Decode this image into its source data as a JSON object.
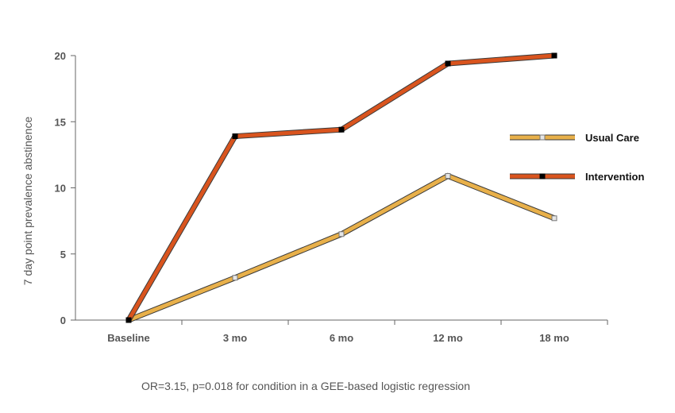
{
  "chart_data": {
    "type": "line",
    "categories": [
      "Baseline",
      "3 mo",
      "6 mo",
      "12 mo",
      "18 mo"
    ],
    "series": [
      {
        "name": "Usual Care",
        "values": [
          0,
          3.2,
          6.5,
          10.9,
          7.7
        ],
        "color": "#E8B04A",
        "marker": "light-gray-square"
      },
      {
        "name": "Intervention",
        "values": [
          0,
          13.9,
          14.4,
          19.4,
          20.0
        ],
        "color": "#D9541E",
        "marker": "black-square"
      }
    ],
    "ylabel": "7 day point prevalence abstinence",
    "xlabel": "",
    "ylim": [
      0,
      20
    ],
    "yticks": [
      0,
      5,
      10,
      15,
      20
    ],
    "grid": false,
    "legend_position": "right",
    "footnote": "OR=3.15, p=0.018 for condition in a GEE-based logistic regression"
  }
}
